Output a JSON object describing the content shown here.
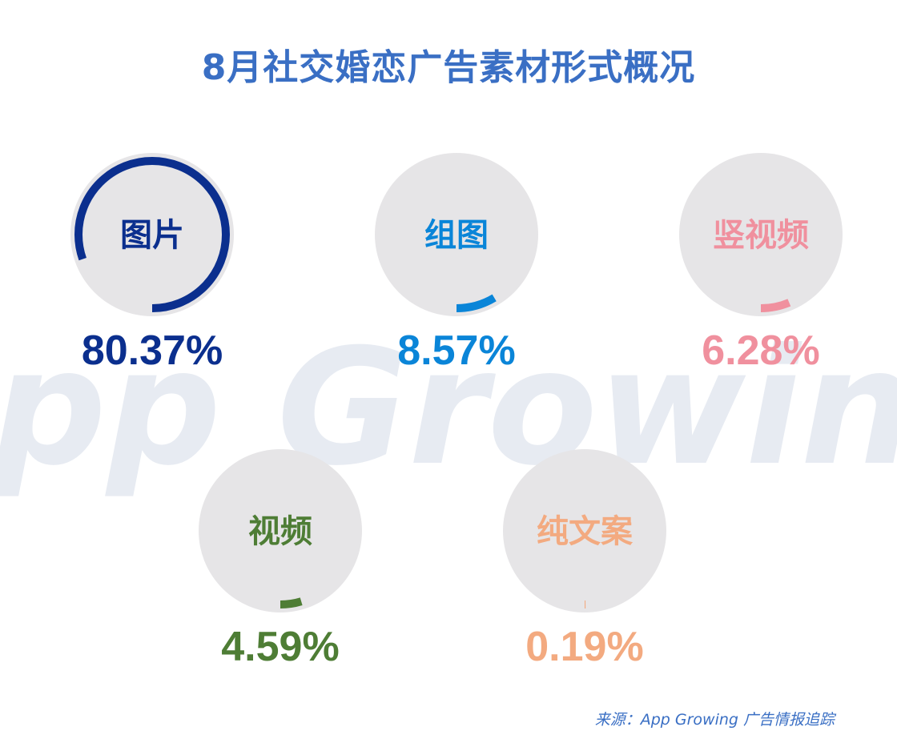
{
  "title": "8月社交婚恋广告素材形式概况",
  "watermark_text": "App Growing",
  "source": "来源：App Growing 广告情报追踪",
  "colors": {
    "title": "#3a6fc4",
    "track": "#e6e5e7",
    "watermark": "#e7ebf2"
  },
  "chart_data": {
    "type": "pie",
    "slices": [
      {
        "label": "图片",
        "value": 80.37,
        "value_text": "80.37%",
        "color": "#0b2f8e"
      },
      {
        "label": "组图",
        "value": 8.57,
        "value_text": "8.57%",
        "color": "#0a85d8"
      },
      {
        "label": "竖视频",
        "value": 6.28,
        "value_text": "6.28%",
        "color": "#f0909e"
      },
      {
        "label": "视频",
        "value": 4.59,
        "value_text": "4.59%",
        "color": "#4e7d35"
      },
      {
        "label": "纯文案",
        "value": 0.19,
        "value_text": "0.19%",
        "color": "#f3aa80"
      }
    ]
  }
}
